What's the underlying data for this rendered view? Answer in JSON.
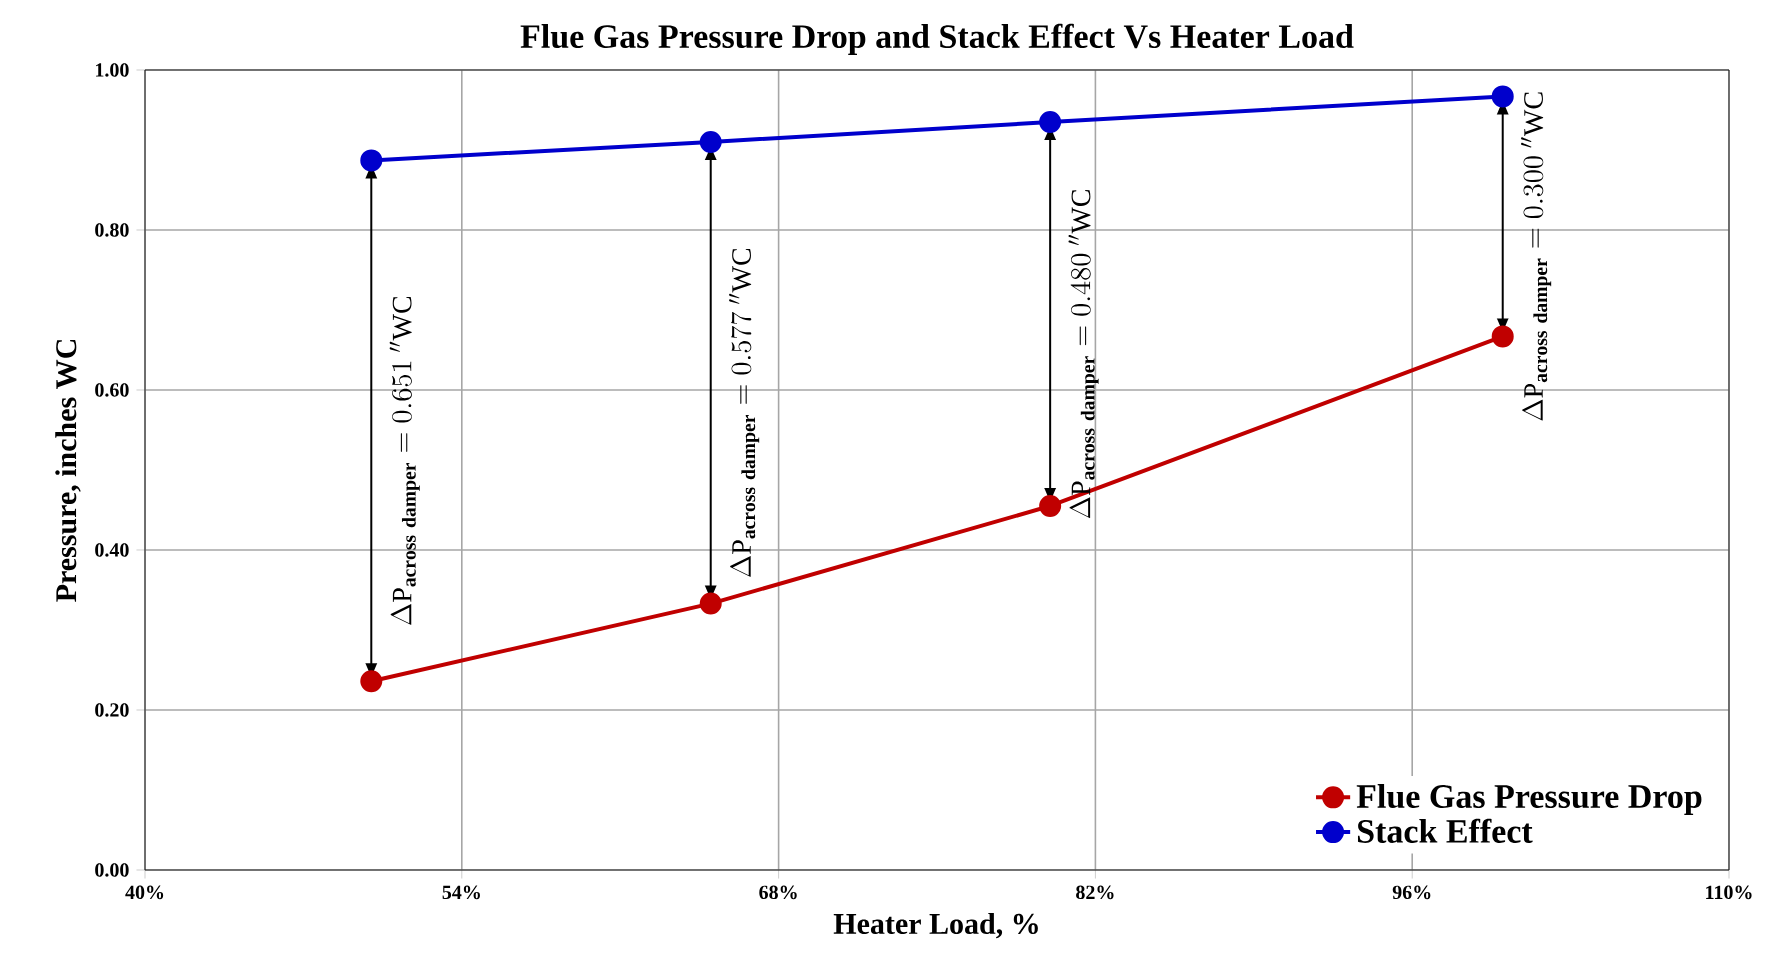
{
  "chart_data": {
    "type": "line",
    "title": "Flue Gas Pressure Drop and Stack Effect Vs Heater Load",
    "xlabel": "Heater Load, %",
    "ylabel": "Pressure, inches WC",
    "x": [
      50,
      65,
      80,
      100
    ],
    "series": [
      {
        "name": "Flue Gas Pressure Drop",
        "color": "#c00000",
        "values": [
          0.236,
          0.333,
          0.455,
          0.667
        ]
      },
      {
        "name": "Stack Effect",
        "color": "#0000cc",
        "values": [
          0.887,
          0.91,
          0.935,
          0.967
        ]
      }
    ],
    "xlim": [
      40,
      110
    ],
    "ylim": [
      0,
      1
    ],
    "xticks": [
      {
        "value": 40,
        "label": "40%"
      },
      {
        "value": 54,
        "label": "54%"
      },
      {
        "value": 68,
        "label": "68%"
      },
      {
        "value": 82,
        "label": "82%"
      },
      {
        "value": 96,
        "label": "96%"
      },
      {
        "value": 110,
        "label": "110%"
      }
    ],
    "yticks": [
      {
        "value": 0,
        "label": "0.00"
      },
      {
        "value": 0.2,
        "label": "0.20"
      },
      {
        "value": 0.4,
        "label": "0.40"
      },
      {
        "value": 0.6,
        "label": "0.60"
      },
      {
        "value": 0.8,
        "label": "0.80"
      },
      {
        "value": 1,
        "label": "1.00"
      }
    ],
    "annotations": [
      "\\Delta\\mathrm{P}_{\\mathbf{across\\ damper}}= 0.651\\ \\mathrm{''WC}",
      "\\Delta\\mathrm{P}_{\\mathbf{across\\ damper}}= 0.577\\ \\mathrm{''WC}",
      "\\Delta\\mathrm{P}_{\\mathbf{across\\ damper}}= 0.480\\ \\mathrm{''WC}",
      "\\Delta\\mathrm{P}_{\\mathbf{across\\ damper}}= 0.300\\ \\mathrm{''WC}"
    ],
    "grid": true,
    "legend": "bottom right",
    "marker": "circle",
    "line_style": "solid"
  }
}
